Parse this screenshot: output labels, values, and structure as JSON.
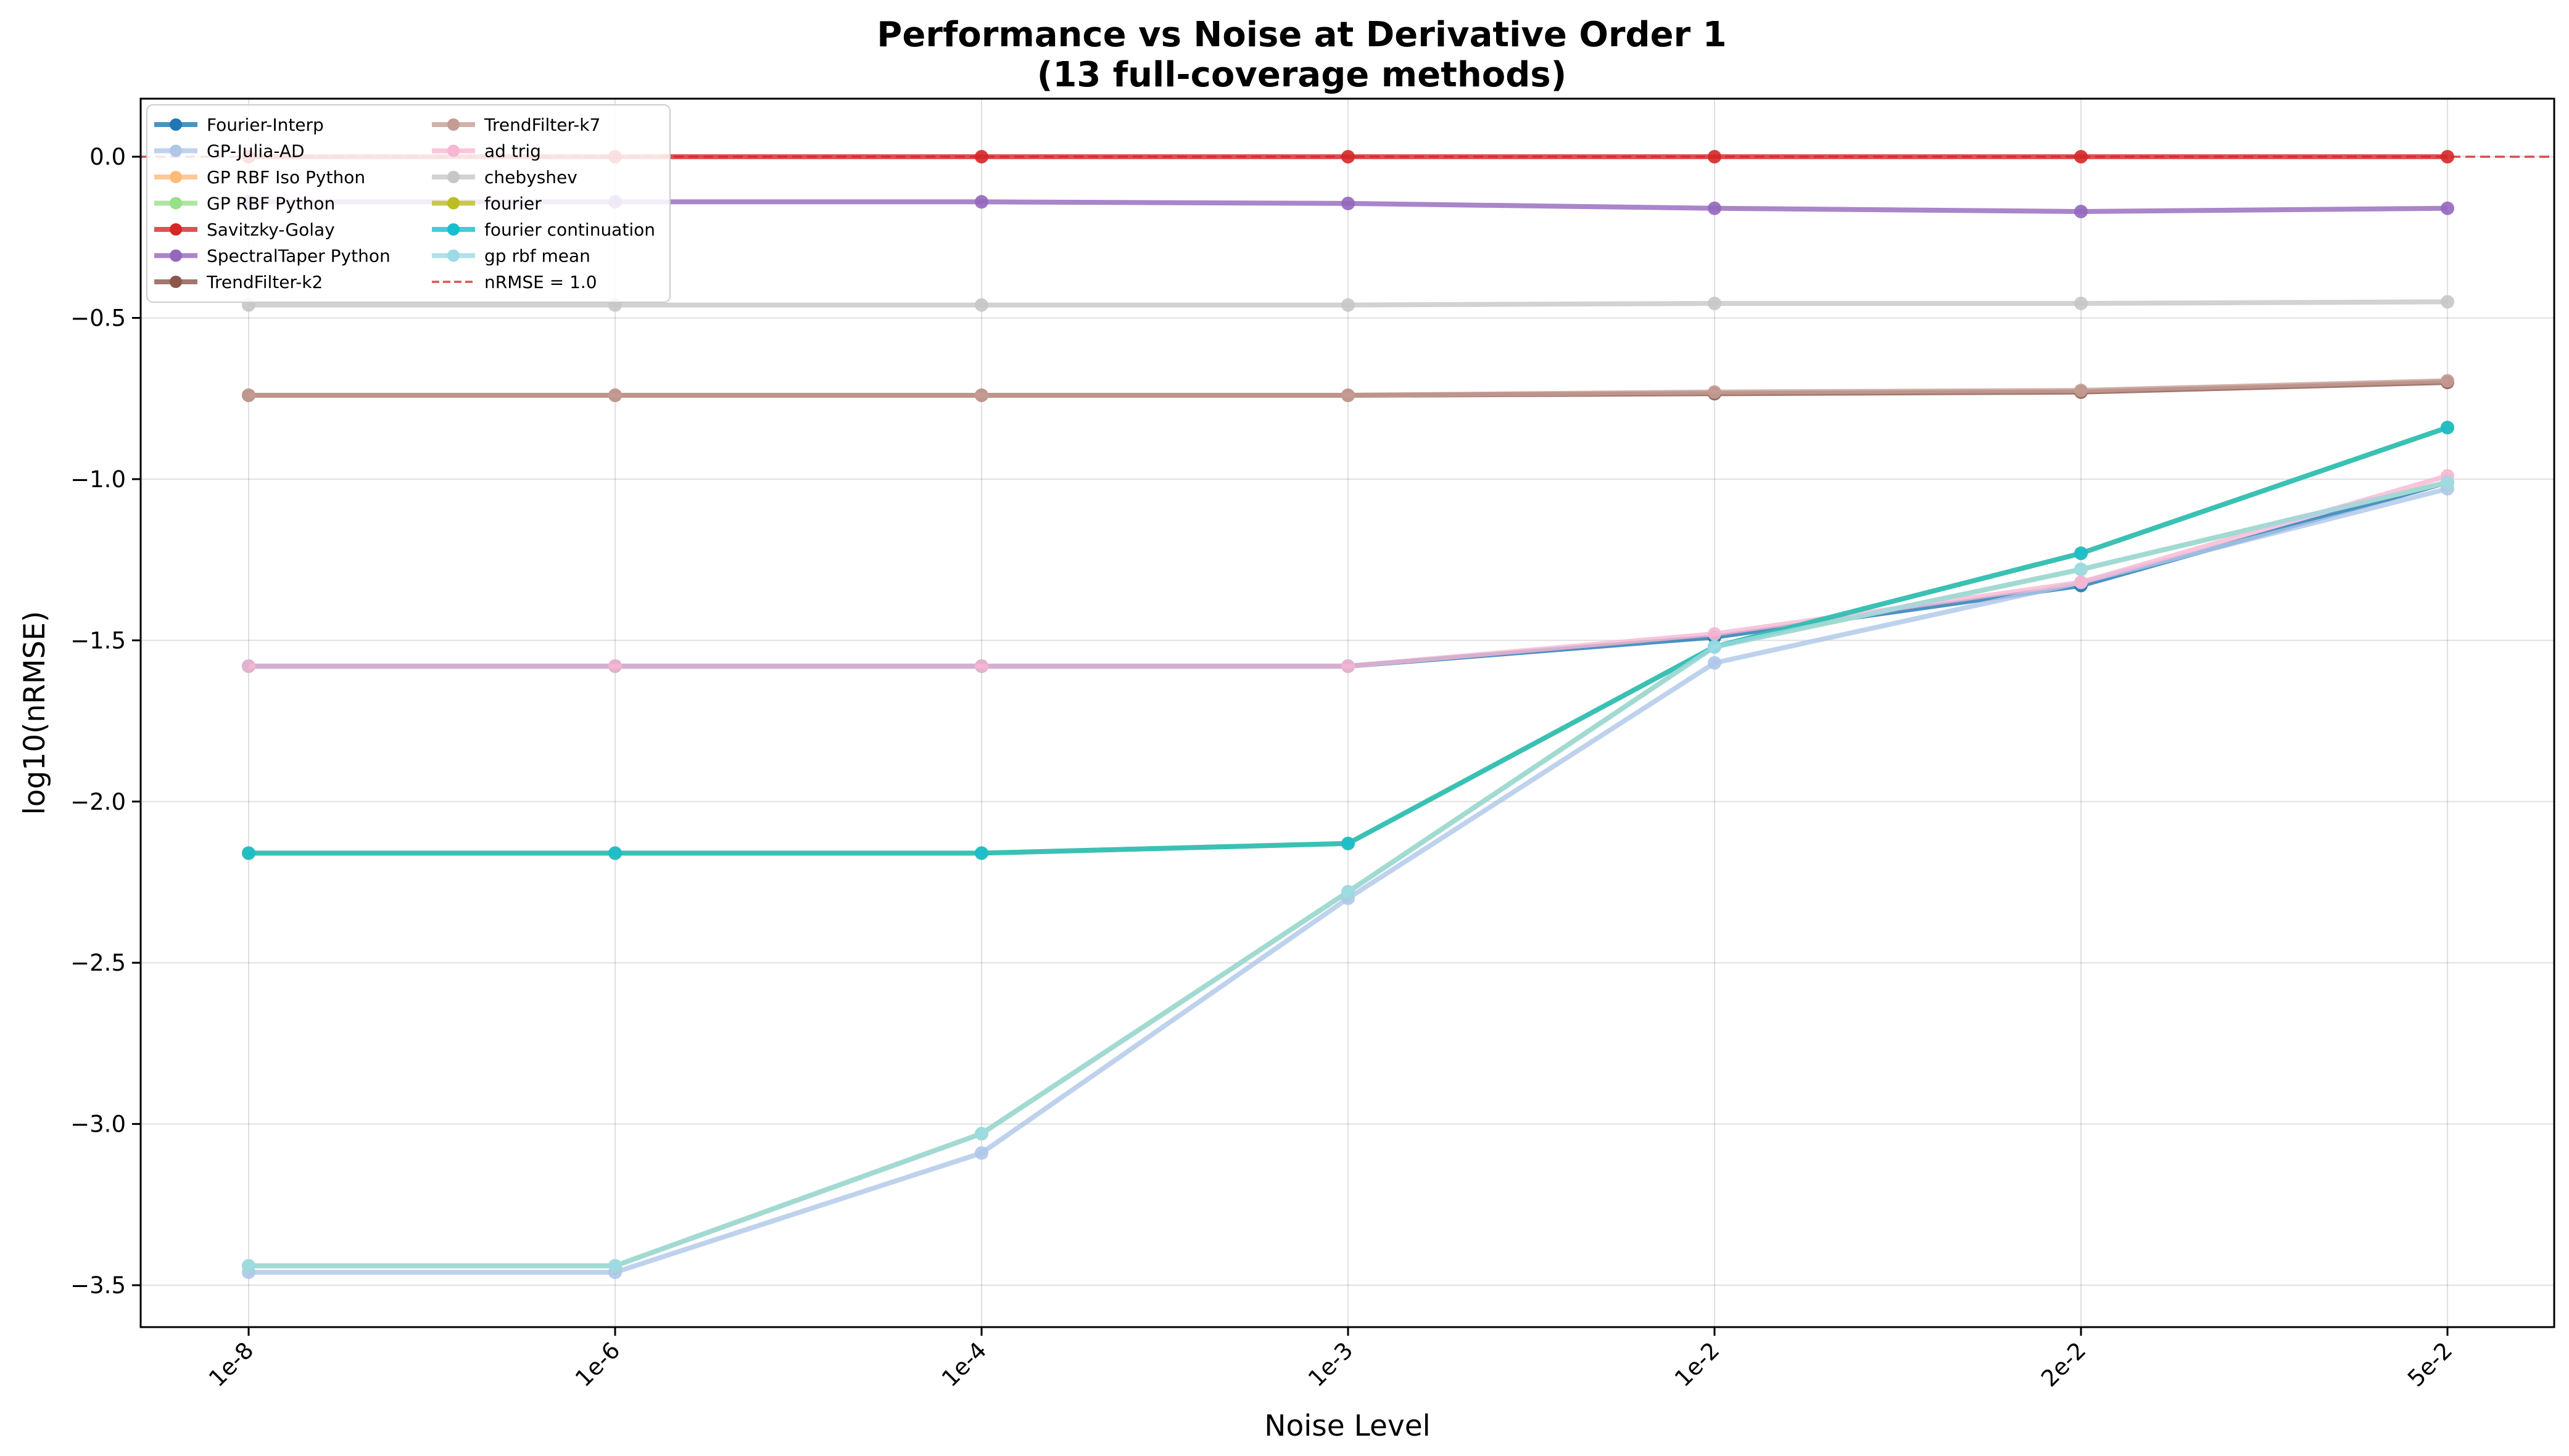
{
  "chart_data": {
    "type": "line",
    "title": "Performance vs Noise at Derivative Order 1",
    "subtitle": "(13 full-coverage methods)",
    "xlabel": "Noise Level",
    "ylabel": "log10(nRMSE)",
    "categories": [
      "1e-8",
      "1e-6",
      "1e-4",
      "1e-3",
      "1e-2",
      "2e-2",
      "5e-2"
    ],
    "ylim": [
      -3.63,
      0.18
    ],
    "yticks": [
      0.0,
      -0.5,
      -1.0,
      -1.5,
      -2.0,
      -2.5,
      -3.0,
      -3.5
    ],
    "ytick_labels": [
      "0.0",
      "−0.5",
      "−1.0",
      "−1.5",
      "−2.0",
      "−2.5",
      "−3.0",
      "−3.5"
    ],
    "grid": true,
    "legend_position": "top-left",
    "series": [
      {
        "name": "Fourier-Interp",
        "color": "#1f77b4",
        "values": [
          -1.58,
          -1.58,
          -1.58,
          -1.58,
          -1.49,
          -1.33,
          -1.01
        ]
      },
      {
        "name": "GP-Julia-AD",
        "color": "#aec7e8",
        "values": [
          -3.46,
          -3.46,
          -3.09,
          -2.3,
          -1.57,
          -1.32,
          -1.03
        ]
      },
      {
        "name": "GP RBF Iso Python",
        "color": "#ffbb78",
        "values": [
          -3.44,
          -3.44,
          -3.03,
          -2.28,
          -1.52,
          -1.28,
          -1.01
        ]
      },
      {
        "name": "GP RBF Python",
        "color": "#98df8a",
        "values": [
          -3.44,
          -3.44,
          -3.03,
          -2.28,
          -1.52,
          -1.28,
          -1.01
        ]
      },
      {
        "name": "Savitzky-Golay",
        "color": "#d62728",
        "values": [
          0.0,
          0.0,
          0.0,
          0.0,
          0.0,
          0.0,
          0.0
        ]
      },
      {
        "name": "SpectralTaper Python",
        "color": "#9467bd",
        "values": [
          -0.14,
          -0.14,
          -0.14,
          -0.145,
          -0.16,
          -0.17,
          -0.16
        ]
      },
      {
        "name": "TrendFilter-k2",
        "color": "#8c564b",
        "values": [
          -0.74,
          -0.74,
          -0.74,
          -0.74,
          -0.735,
          -0.73,
          -0.7
        ]
      },
      {
        "name": "TrendFilter-k7",
        "color": "#c49c94",
        "values": [
          -0.74,
          -0.74,
          -0.74,
          -0.74,
          -0.73,
          -0.725,
          -0.695
        ]
      },
      {
        "name": "ad trig",
        "color": "#f7b6d2",
        "values": [
          -1.58,
          -1.58,
          -1.58,
          -1.58,
          -1.48,
          -1.32,
          -0.99
        ]
      },
      {
        "name": "chebyshev",
        "color": "#c7c7c7",
        "values": [
          -0.46,
          -0.46,
          -0.46,
          -0.46,
          -0.455,
          -0.455,
          -0.45
        ]
      },
      {
        "name": "fourier",
        "color": "#bcbd22",
        "values": [
          -2.16,
          -2.16,
          -2.16,
          -2.13,
          -1.52,
          -1.23,
          -0.84
        ]
      },
      {
        "name": "fourier continuation",
        "color": "#17becf",
        "values": [
          -2.16,
          -2.16,
          -2.16,
          -2.13,
          -1.52,
          -1.23,
          -0.84
        ]
      },
      {
        "name": "gp rbf mean",
        "color": "#9edae5",
        "values": [
          -3.44,
          -3.44,
          -3.03,
          -2.28,
          -1.52,
          -1.28,
          -1.01
        ]
      }
    ],
    "reference_line": {
      "name": "nRMSE = 1.0",
      "value": 0.0,
      "color": "#d62728"
    }
  }
}
